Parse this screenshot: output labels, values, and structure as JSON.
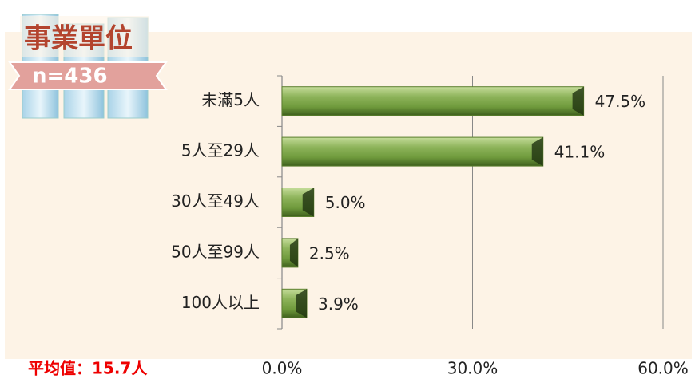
{
  "chart_data": {
    "type": "bar",
    "orientation": "horizontal",
    "title": "事業單位",
    "subtitle": "n=436",
    "annotation": "平均值：15.7人",
    "categories": [
      "未滿5人",
      "5人至29人",
      "30人至49人",
      "50人至99人",
      "100人以上"
    ],
    "values": [
      47.5,
      41.1,
      5.0,
      2.5,
      3.9
    ],
    "value_labels": [
      "47.5%",
      "41.1%",
      "5.0%",
      "2.5%",
      "3.9%"
    ],
    "color": "#8db35a",
    "xlim": [
      0,
      60
    ],
    "xticks": [
      {
        "value": 0,
        "label": "0.0%"
      },
      {
        "value": 30,
        "label": "30.0%"
      },
      {
        "value": 60,
        "label": "60.0%"
      }
    ],
    "grid": true
  }
}
